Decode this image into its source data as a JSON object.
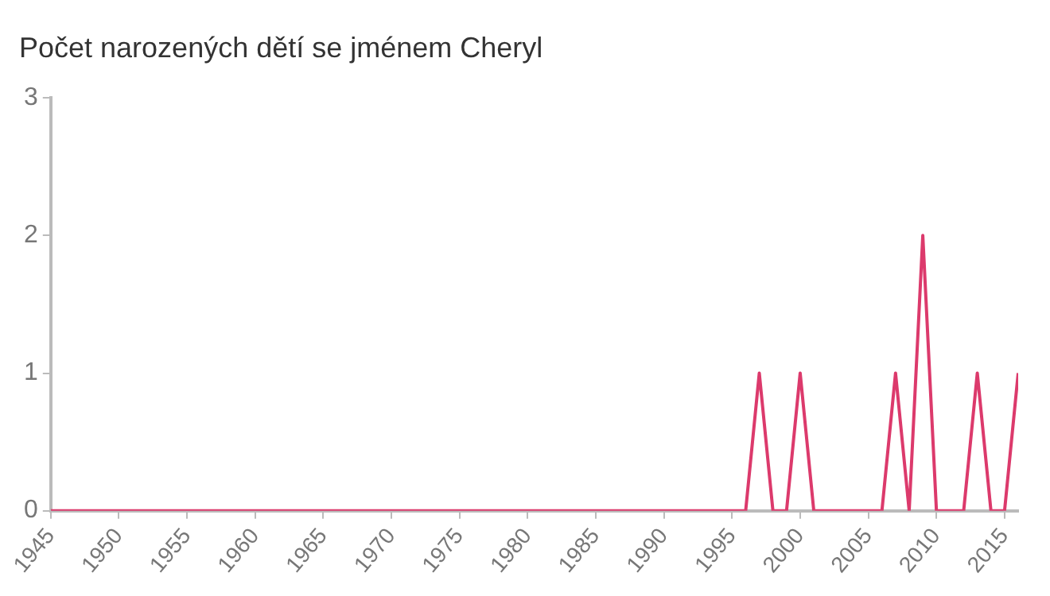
{
  "chart_data": {
    "type": "line",
    "title": "Počet narozených dětí se jménem Cheryl",
    "x": [
      1945,
      1946,
      1947,
      1948,
      1949,
      1950,
      1951,
      1952,
      1953,
      1954,
      1955,
      1956,
      1957,
      1958,
      1959,
      1960,
      1961,
      1962,
      1963,
      1964,
      1965,
      1966,
      1967,
      1968,
      1969,
      1970,
      1971,
      1972,
      1973,
      1974,
      1975,
      1976,
      1977,
      1978,
      1979,
      1980,
      1981,
      1982,
      1983,
      1984,
      1985,
      1986,
      1987,
      1988,
      1989,
      1990,
      1991,
      1992,
      1993,
      1994,
      1995,
      1996,
      1997,
      1998,
      1999,
      2000,
      2001,
      2002,
      2003,
      2004,
      2005,
      2006,
      2007,
      2008,
      2009,
      2010,
      2011,
      2012,
      2013,
      2014,
      2015,
      2016
    ],
    "series": [
      {
        "color": "#dc3a6c",
        "values": [
          0,
          0,
          0,
          0,
          0,
          0,
          0,
          0,
          0,
          0,
          0,
          0,
          0,
          0,
          0,
          0,
          0,
          0,
          0,
          0,
          0,
          0,
          0,
          0,
          0,
          0,
          0,
          0,
          0,
          0,
          0,
          0,
          0,
          0,
          0,
          0,
          0,
          0,
          0,
          0,
          0,
          0,
          0,
          0,
          0,
          0,
          0,
          0,
          0,
          0,
          0,
          0,
          1,
          0,
          0,
          1,
          0,
          0,
          0,
          0,
          0,
          0,
          1,
          0,
          2,
          0,
          0,
          0,
          1,
          0,
          0,
          1
        ]
      }
    ],
    "xlim": [
      1945,
      2016
    ],
    "xticks": [
      1945,
      1950,
      1955,
      1960,
      1965,
      1970,
      1975,
      1980,
      1985,
      1990,
      1995,
      2000,
      2005,
      2010,
      2015
    ],
    "ylim": [
      0,
      3
    ],
    "yticks": [
      0,
      1,
      2,
      3
    ],
    "grid": false,
    "legend": false,
    "marker": "none",
    "line_style": "solid"
  }
}
